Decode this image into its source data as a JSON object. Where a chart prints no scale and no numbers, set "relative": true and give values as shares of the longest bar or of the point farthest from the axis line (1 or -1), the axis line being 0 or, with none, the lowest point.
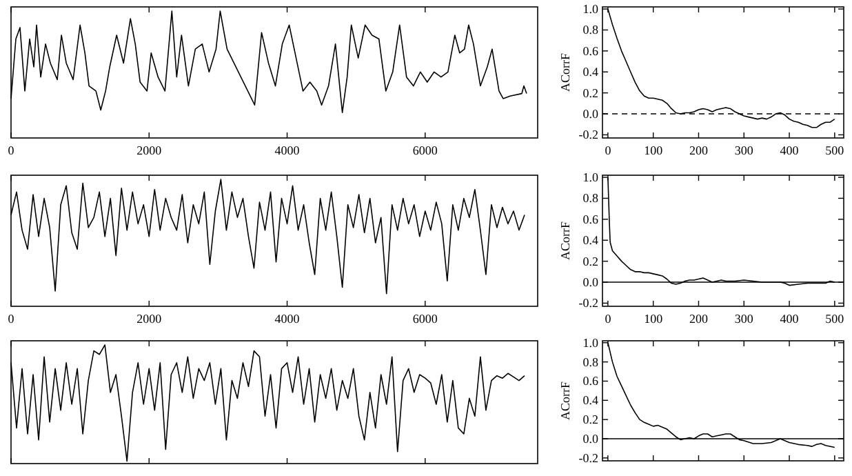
{
  "chart_data": [
    {
      "type": "line",
      "relative": true,
      "xlim": [
        0,
        7630
      ],
      "xticks": [
        0,
        2000,
        4000,
        6000
      ],
      "tick_labels": "x",
      "x": [
        0,
        70,
        130,
        200,
        270,
        330,
        370,
        430,
        500,
        570,
        670,
        730,
        800,
        900,
        1000,
        1070,
        1130,
        1230,
        1300,
        1370,
        1430,
        1530,
        1630,
        1730,
        1800,
        1870,
        1970,
        2030,
        2130,
        2230,
        2330,
        2400,
        2470,
        2570,
        2670,
        2770,
        2870,
        2970,
        3030,
        3130,
        3230,
        3330,
        3430,
        3530,
        3630,
        3730,
        3830,
        3930,
        4030,
        4130,
        4230,
        4330,
        4430,
        4500,
        4600,
        4700,
        4800,
        4870,
        4930,
        5030,
        5130,
        5230,
        5330,
        5430,
        5530,
        5630,
        5730,
        5830,
        5930,
        6030,
        6130,
        6230,
        6330,
        6430,
        6500,
        6570,
        6630,
        6700,
        6800,
        6900,
        6970,
        7070,
        7130,
        7230,
        7400,
        7430,
        7470
      ],
      "series": [
        {
          "color": "#000000",
          "values": [
            0.31,
            0.78,
            0.87,
            0.37,
            0.78,
            0.56,
            0.89,
            0.48,
            0.74,
            0.59,
            0.46,
            0.81,
            0.59,
            0.46,
            0.89,
            0.67,
            0.41,
            0.37,
            0.22,
            0.37,
            0.56,
            0.81,
            0.59,
            0.94,
            0.74,
            0.44,
            0.37,
            0.67,
            0.48,
            0.37,
            1,
            0.48,
            0.81,
            0.41,
            0.7,
            0.74,
            0.52,
            0.7,
            1,
            0.7,
            0.59,
            0.48,
            0.37,
            0.26,
            0.83,
            0.59,
            0.41,
            0.74,
            0.89,
            0.63,
            0.37,
            0.44,
            0.37,
            0.26,
            0.41,
            0.74,
            0.2,
            0.48,
            0.89,
            0.63,
            0.89,
            0.81,
            0.78,
            0.37,
            0.52,
            0.89,
            0.48,
            0.41,
            0.52,
            0.44,
            0.52,
            0.48,
            0.52,
            0.81,
            0.67,
            0.7,
            0.89,
            0.74,
            0.41,
            0.56,
            0.7,
            0.37,
            0.31,
            0.33,
            0.35,
            0.41,
            0.35
          ]
        }
      ]
    },
    {
      "type": "line",
      "xlim": [
        -12,
        520
      ],
      "ylim": [
        -0.23,
        1.02
      ],
      "xticks": [
        0,
        100,
        200,
        300,
        400,
        500
      ],
      "yticks": [
        {
          "value": -0.2,
          "label": "-0.2"
        },
        {
          "value": 0,
          "label": "0.0"
        },
        {
          "value": 0.2,
          "label": "0.2"
        },
        {
          "value": 0.4,
          "label": "0.4"
        },
        {
          "value": 0.6,
          "label": "0.6"
        },
        {
          "value": 0.8,
          "label": "0.8"
        },
        {
          "value": 1,
          "label": "1.0"
        }
      ],
      "ylabel": "ACorrF",
      "ref_lines": [
        {
          "axis": "y",
          "value": 0,
          "line_style": "dashed"
        }
      ],
      "x": [
        0,
        10,
        20,
        30,
        40,
        50,
        60,
        70,
        80,
        90,
        100,
        110,
        120,
        130,
        140,
        150,
        160,
        170,
        180,
        190,
        200,
        210,
        220,
        230,
        240,
        250,
        260,
        270,
        280,
        290,
        300,
        310,
        320,
        330,
        340,
        350,
        360,
        370,
        380,
        390,
        400,
        410,
        420,
        430,
        440,
        450,
        460,
        470,
        480,
        490,
        500
      ],
      "series": [
        {
          "color": "#000000",
          "values": [
            1.0,
            0.85,
            0.72,
            0.6,
            0.5,
            0.4,
            0.3,
            0.22,
            0.17,
            0.15,
            0.15,
            0.14,
            0.13,
            0.1,
            0.05,
            0.01,
            0.0,
            0.01,
            0.01,
            0.02,
            0.04,
            0.05,
            0.04,
            0.02,
            0.04,
            0.05,
            0.06,
            0.05,
            0.02,
            0.0,
            -0.02,
            -0.03,
            -0.04,
            -0.05,
            -0.04,
            -0.05,
            -0.03,
            0.0,
            0.01,
            -0.01,
            -0.05,
            -0.07,
            -0.08,
            -0.1,
            -0.11,
            -0.13,
            -0.13,
            -0.1,
            -0.08,
            -0.08,
            -0.05
          ]
        }
      ]
    },
    {
      "type": "line",
      "relative": true,
      "xlim": [
        0,
        7630
      ],
      "xticks": [
        0,
        2000,
        4000,
        6000
      ],
      "tick_labels": "x",
      "x": [
        0,
        80,
        160,
        240,
        320,
        400,
        480,
        560,
        640,
        720,
        800,
        880,
        960,
        1040,
        1120,
        1200,
        1280,
        1360,
        1440,
        1520,
        1600,
        1680,
        1760,
        1840,
        1920,
        2000,
        2080,
        2160,
        2240,
        2320,
        2400,
        2480,
        2560,
        2640,
        2720,
        2800,
        2880,
        2960,
        3040,
        3120,
        3200,
        3280,
        3360,
        3440,
        3520,
        3600,
        3680,
        3760,
        3840,
        3920,
        4000,
        4080,
        4160,
        4240,
        4320,
        4400,
        4480,
        4560,
        4640,
        4720,
        4800,
        4880,
        4960,
        5040,
        5120,
        5200,
        5280,
        5360,
        5440,
        5520,
        5600,
        5680,
        5760,
        5840,
        5920,
        6000,
        6080,
        6160,
        6240,
        6320,
        6400,
        6480,
        6560,
        6640,
        6720,
        6800,
        6880,
        6960,
        7040,
        7120,
        7200,
        7280,
        7360,
        7440
      ],
      "series": [
        {
          "color": "#000000",
          "values": [
            0.72,
            0.9,
            0.6,
            0.45,
            0.88,
            0.55,
            0.85,
            0.62,
            0.12,
            0.8,
            0.95,
            0.58,
            0.45,
            0.97,
            0.62,
            0.7,
            0.9,
            0.55,
            0.85,
            0.4,
            0.93,
            0.6,
            0.9,
            0.65,
            0.8,
            0.55,
            0.92,
            0.6,
            0.85,
            0.7,
            0.6,
            0.88,
            0.5,
            0.8,
            0.65,
            0.9,
            0.33,
            0.75,
            1,
            0.6,
            0.9,
            0.7,
            0.85,
            0.55,
            0.3,
            0.82,
            0.6,
            0.9,
            0.35,
            0.85,
            0.65,
            0.95,
            0.6,
            0.8,
            0.5,
            0.25,
            0.85,
            0.6,
            0.9,
            0.55,
            0.15,
            0.8,
            0.62,
            0.88,
            0.58,
            0.85,
            0.5,
            0.7,
            0.1,
            0.8,
            0.6,
            0.85,
            0.65,
            0.8,
            0.55,
            0.75,
            0.6,
            0.82,
            0.65,
            0.2,
            0.8,
            0.6,
            0.85,
            0.7,
            0.92,
            0.6,
            0.25,
            0.8,
            0.62,
            0.78,
            0.65,
            0.75,
            0.6,
            0.72
          ]
        }
      ]
    },
    {
      "type": "line",
      "xlim": [
        -12,
        520
      ],
      "ylim": [
        -0.23,
        1.02
      ],
      "xticks": [
        0,
        100,
        200,
        300,
        400,
        500
      ],
      "yticks": [
        {
          "value": -0.2,
          "label": "-0.2"
        },
        {
          "value": 0,
          "label": "0.0"
        },
        {
          "value": 0.2,
          "label": "0.2"
        },
        {
          "value": 0.4,
          "label": "0.4"
        },
        {
          "value": 0.6,
          "label": "0.6"
        },
        {
          "value": 0.8,
          "label": "0.8"
        },
        {
          "value": 1,
          "label": "1.0"
        }
      ],
      "ylabel": "ACorrF",
      "ref_lines": [
        {
          "axis": "y",
          "value": 0,
          "line_style": "solid"
        }
      ],
      "x": [
        0,
        3,
        5,
        10,
        20,
        30,
        40,
        50,
        60,
        70,
        80,
        90,
        100,
        110,
        120,
        130,
        140,
        150,
        160,
        170,
        180,
        190,
        200,
        210,
        220,
        230,
        240,
        250,
        260,
        280,
        300,
        320,
        340,
        360,
        380,
        390,
        400,
        420,
        440,
        460,
        480,
        490,
        500
      ],
      "series": [
        {
          "color": "#000000",
          "values": [
            1.0,
            0.6,
            0.38,
            0.3,
            0.25,
            0.2,
            0.16,
            0.12,
            0.1,
            0.1,
            0.09,
            0.09,
            0.08,
            0.07,
            0.06,
            0.03,
            -0.01,
            -0.02,
            -0.01,
            0.01,
            0.02,
            0.02,
            0.03,
            0.04,
            0.02,
            0.0,
            0.01,
            0.02,
            0.01,
            0.01,
            0.02,
            0.01,
            0.0,
            0.0,
            0.0,
            -0.01,
            -0.03,
            -0.02,
            -0.01,
            -0.01,
            -0.01,
            0.01,
            0.0
          ]
        }
      ]
    },
    {
      "type": "line",
      "relative": true,
      "xlim": [
        0,
        7630
      ],
      "xticks": [
        0,
        2000,
        4000,
        6000
      ],
      "tick_labels": false,
      "x": [
        0,
        80,
        160,
        240,
        320,
        400,
        480,
        560,
        640,
        720,
        800,
        880,
        960,
        1040,
        1120,
        1200,
        1280,
        1360,
        1440,
        1520,
        1600,
        1680,
        1760,
        1840,
        1920,
        2000,
        2080,
        2160,
        2240,
        2320,
        2400,
        2480,
        2560,
        2640,
        2720,
        2800,
        2880,
        2960,
        3040,
        3120,
        3200,
        3280,
        3360,
        3440,
        3520,
        3600,
        3680,
        3760,
        3840,
        3920,
        4000,
        4080,
        4160,
        4240,
        4320,
        4400,
        4480,
        4560,
        4640,
        4720,
        4800,
        4880,
        4960,
        5040,
        5120,
        5200,
        5280,
        5360,
        5440,
        5520,
        5600,
        5680,
        5760,
        5840,
        5920,
        6000,
        6080,
        6160,
        6240,
        6320,
        6400,
        6480,
        6560,
        6640,
        6720,
        6800,
        6880,
        6960,
        7040,
        7120,
        7200,
        7280,
        7360,
        7440
      ],
      "series": [
        {
          "color": "#000000",
          "values": [
            0.85,
            0.3,
            0.8,
            0.25,
            0.75,
            0.2,
            0.9,
            0.35,
            0.8,
            0.45,
            0.85,
            0.5,
            0.8,
            0.25,
            0.7,
            0.95,
            0.92,
            1,
            0.6,
            0.75,
            0.4,
            0.02,
            0.6,
            0.85,
            0.5,
            0.8,
            0.45,
            0.85,
            0.12,
            0.75,
            0.85,
            0.6,
            0.9,
            0.55,
            0.8,
            0.7,
            0.85,
            0.5,
            0.8,
            0.2,
            0.7,
            0.55,
            0.85,
            0.65,
            0.95,
            0.9,
            0.4,
            0.75,
            0.3,
            0.8,
            0.85,
            0.6,
            0.9,
            0.5,
            0.8,
            0.35,
            0.75,
            0.55,
            0.8,
            0.45,
            0.7,
            0.55,
            0.8,
            0.4,
            0.2,
            0.6,
            0.3,
            0.75,
            0.5,
            0.9,
            0.1,
            0.7,
            0.8,
            0.6,
            0.75,
            0.72,
            0.68,
            0.5,
            0.75,
            0.35,
            0.7,
            0.3,
            0.25,
            0.55,
            0.4,
            0.9,
            0.45,
            0.7,
            0.74,
            0.72,
            0.76,
            0.73,
            0.7,
            0.74
          ]
        }
      ]
    },
    {
      "type": "line",
      "xlim": [
        -12,
        520
      ],
      "ylim": [
        -0.23,
        1.02
      ],
      "xticks": [
        0,
        100,
        200,
        300,
        400,
        500
      ],
      "yticks": [
        {
          "value": -0.2,
          "label": "-0.2"
        },
        {
          "value": 0,
          "label": "0.0"
        },
        {
          "value": 0.2,
          "label": "0.2"
        },
        {
          "value": 0.4,
          "label": "0.4"
        },
        {
          "value": 0.6,
          "label": "0.6"
        },
        {
          "value": 0.8,
          "label": "0.8"
        },
        {
          "value": 1,
          "label": "1.0"
        }
      ],
      "ylabel": "ACorrF",
      "tick_labels": "y",
      "ref_lines": [
        {
          "axis": "y",
          "value": 0,
          "line_style": "solid"
        }
      ],
      "x": [
        0,
        10,
        20,
        30,
        40,
        50,
        60,
        70,
        80,
        90,
        100,
        110,
        120,
        130,
        140,
        150,
        160,
        170,
        180,
        190,
        200,
        210,
        220,
        230,
        240,
        250,
        260,
        270,
        280,
        290,
        300,
        320,
        340,
        360,
        370,
        380,
        390,
        400,
        420,
        440,
        450,
        460,
        470,
        480,
        500
      ],
      "series": [
        {
          "color": "#000000",
          "values": [
            1.0,
            0.8,
            0.65,
            0.55,
            0.45,
            0.35,
            0.27,
            0.2,
            0.17,
            0.15,
            0.13,
            0.14,
            0.12,
            0.1,
            0.06,
            0.02,
            -0.01,
            0.0,
            0.01,
            0.0,
            0.03,
            0.05,
            0.05,
            0.02,
            0.03,
            0.04,
            0.05,
            0.05,
            0.02,
            -0.01,
            -0.02,
            -0.05,
            -0.05,
            -0.04,
            -0.02,
            0.0,
            -0.02,
            -0.04,
            -0.06,
            -0.07,
            -0.08,
            -0.06,
            -0.05,
            -0.07,
            -0.09
          ]
        }
      ]
    }
  ]
}
